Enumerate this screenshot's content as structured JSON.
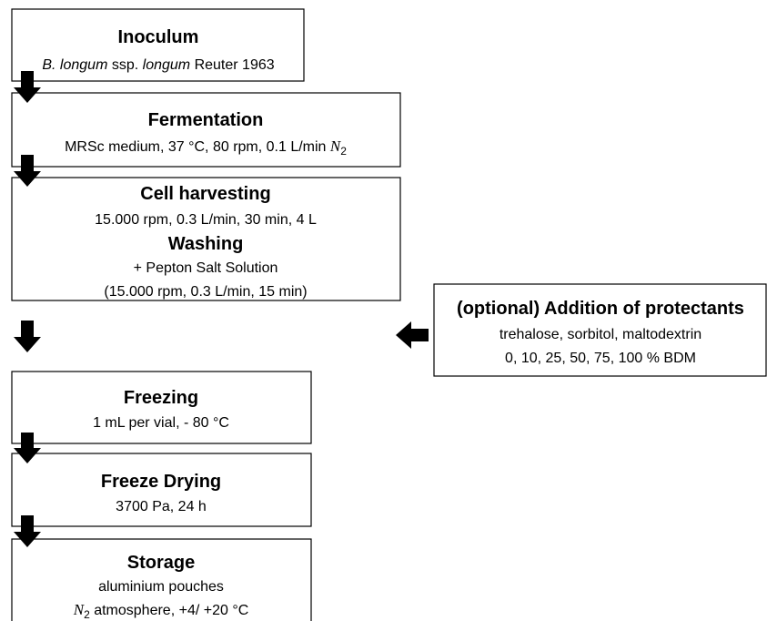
{
  "boxes": [
    {
      "sections": [
        {
          "title": "Inoculum",
          "lines": [
            [
              "B. longum",
              " ssp. ",
              "longum",
              " Reuter 1963"
            ]
          ]
        }
      ]
    },
    {
      "sections": [
        {
          "title": "Fermentation",
          "lines": [
            [
              "MRSc medium, 37 °C, 80 rpm, 0.1 L/min ",
              "N",
              "2"
            ]
          ]
        }
      ]
    },
    {
      "sections": [
        {
          "title": "Cell harvesting",
          "lines": [
            [
              "15.000 rpm, 0.3 L/min, 30 min, 4 L"
            ]
          ]
        },
        {
          "title": "Washing",
          "lines": [
            [
              "+ Pepton Salt Solution"
            ],
            [
              "(15.000 rpm, 0.3 L/min, 15 min)"
            ]
          ]
        }
      ]
    },
    {
      "sections": [
        {
          "title": "(optional) Addition of protectants",
          "lines": [
            [
              "trehalose, sorbitol, maltodextrin"
            ],
            [
              "0, 10, 25, 50, 75, 100 % BDM"
            ]
          ]
        }
      ]
    },
    {
      "sections": [
        {
          "title": "Freezing",
          "lines": [
            [
              "1 mL per vial, - 80 °C"
            ]
          ]
        }
      ]
    },
    {
      "sections": [
        {
          "title": "Freeze Drying",
          "lines": [
            [
              "3700 Pa, 24 h"
            ]
          ]
        }
      ]
    },
    {
      "sections": [
        {
          "title": "Storage",
          "lines": [
            [
              "aluminium pouches"
            ],
            [
              "N",
              "2",
              " atmosphere, +4/ +20 °C"
            ]
          ]
        }
      ]
    }
  ]
}
